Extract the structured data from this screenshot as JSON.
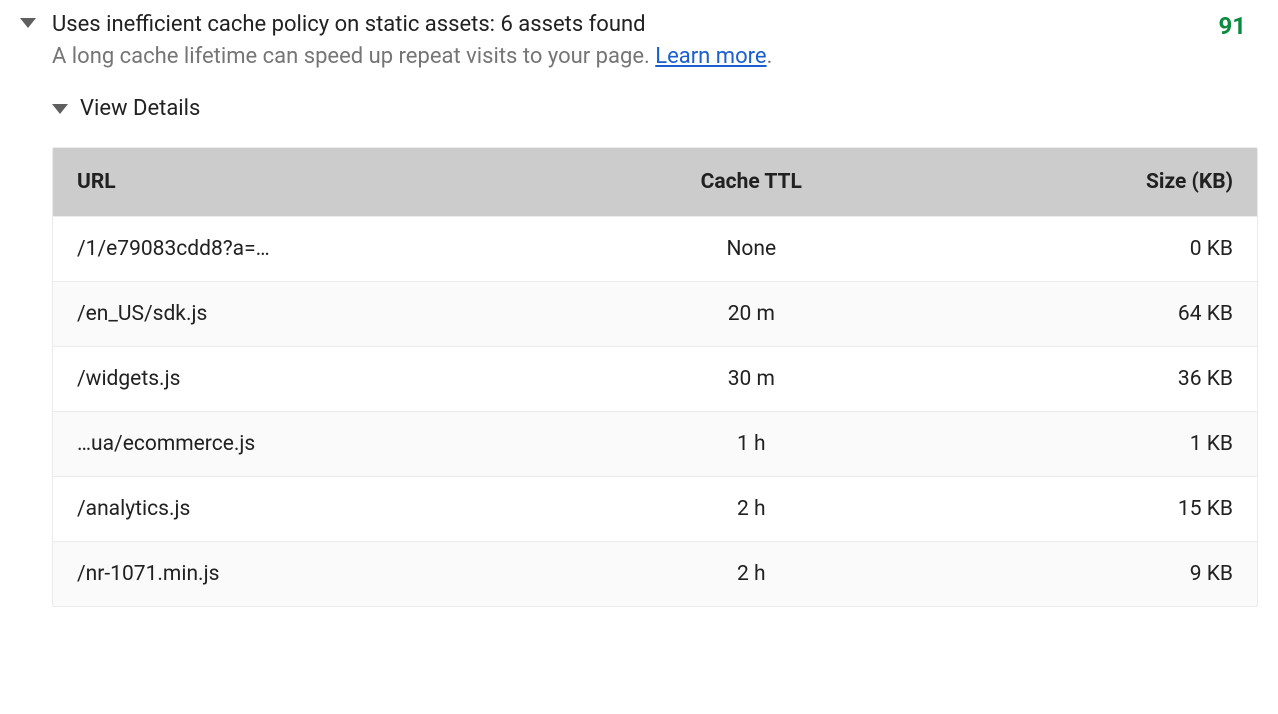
{
  "audit": {
    "title": "Uses inefficient cache policy on static assets: 6 assets found",
    "description": "A long cache lifetime can speed up repeat visits to your page. ",
    "learn_more": "Learn more",
    "score": "91",
    "score_color": "#0b8b3f",
    "details_label": "View Details",
    "colors": {
      "chevron": "#5f5f5f",
      "title_text": "#212121",
      "desc_text": "#757575",
      "link": "#1a5fd0",
      "table_header_bg": "#cccccc",
      "row_alt_bg": "#fafafa",
      "border": "#ebebeb"
    },
    "table": {
      "columns": [
        "URL",
        "Cache TTL",
        "Size (KB)"
      ],
      "rows": [
        {
          "url": "/1/e79083cdd8?a=…",
          "ttl": "None",
          "size": "0 KB"
        },
        {
          "url": "/en_US/sdk.js",
          "ttl": "20 m",
          "size": "64 KB"
        },
        {
          "url": "/widgets.js",
          "ttl": "30 m",
          "size": "36 KB"
        },
        {
          "url": "…ua/ecommerce.js",
          "ttl": "1 h",
          "size": "1 KB"
        },
        {
          "url": "/analytics.js",
          "ttl": "2 h",
          "size": "15 KB"
        },
        {
          "url": "/nr-1071.min.js",
          "ttl": "2 h",
          "size": "9 KB"
        }
      ]
    }
  }
}
